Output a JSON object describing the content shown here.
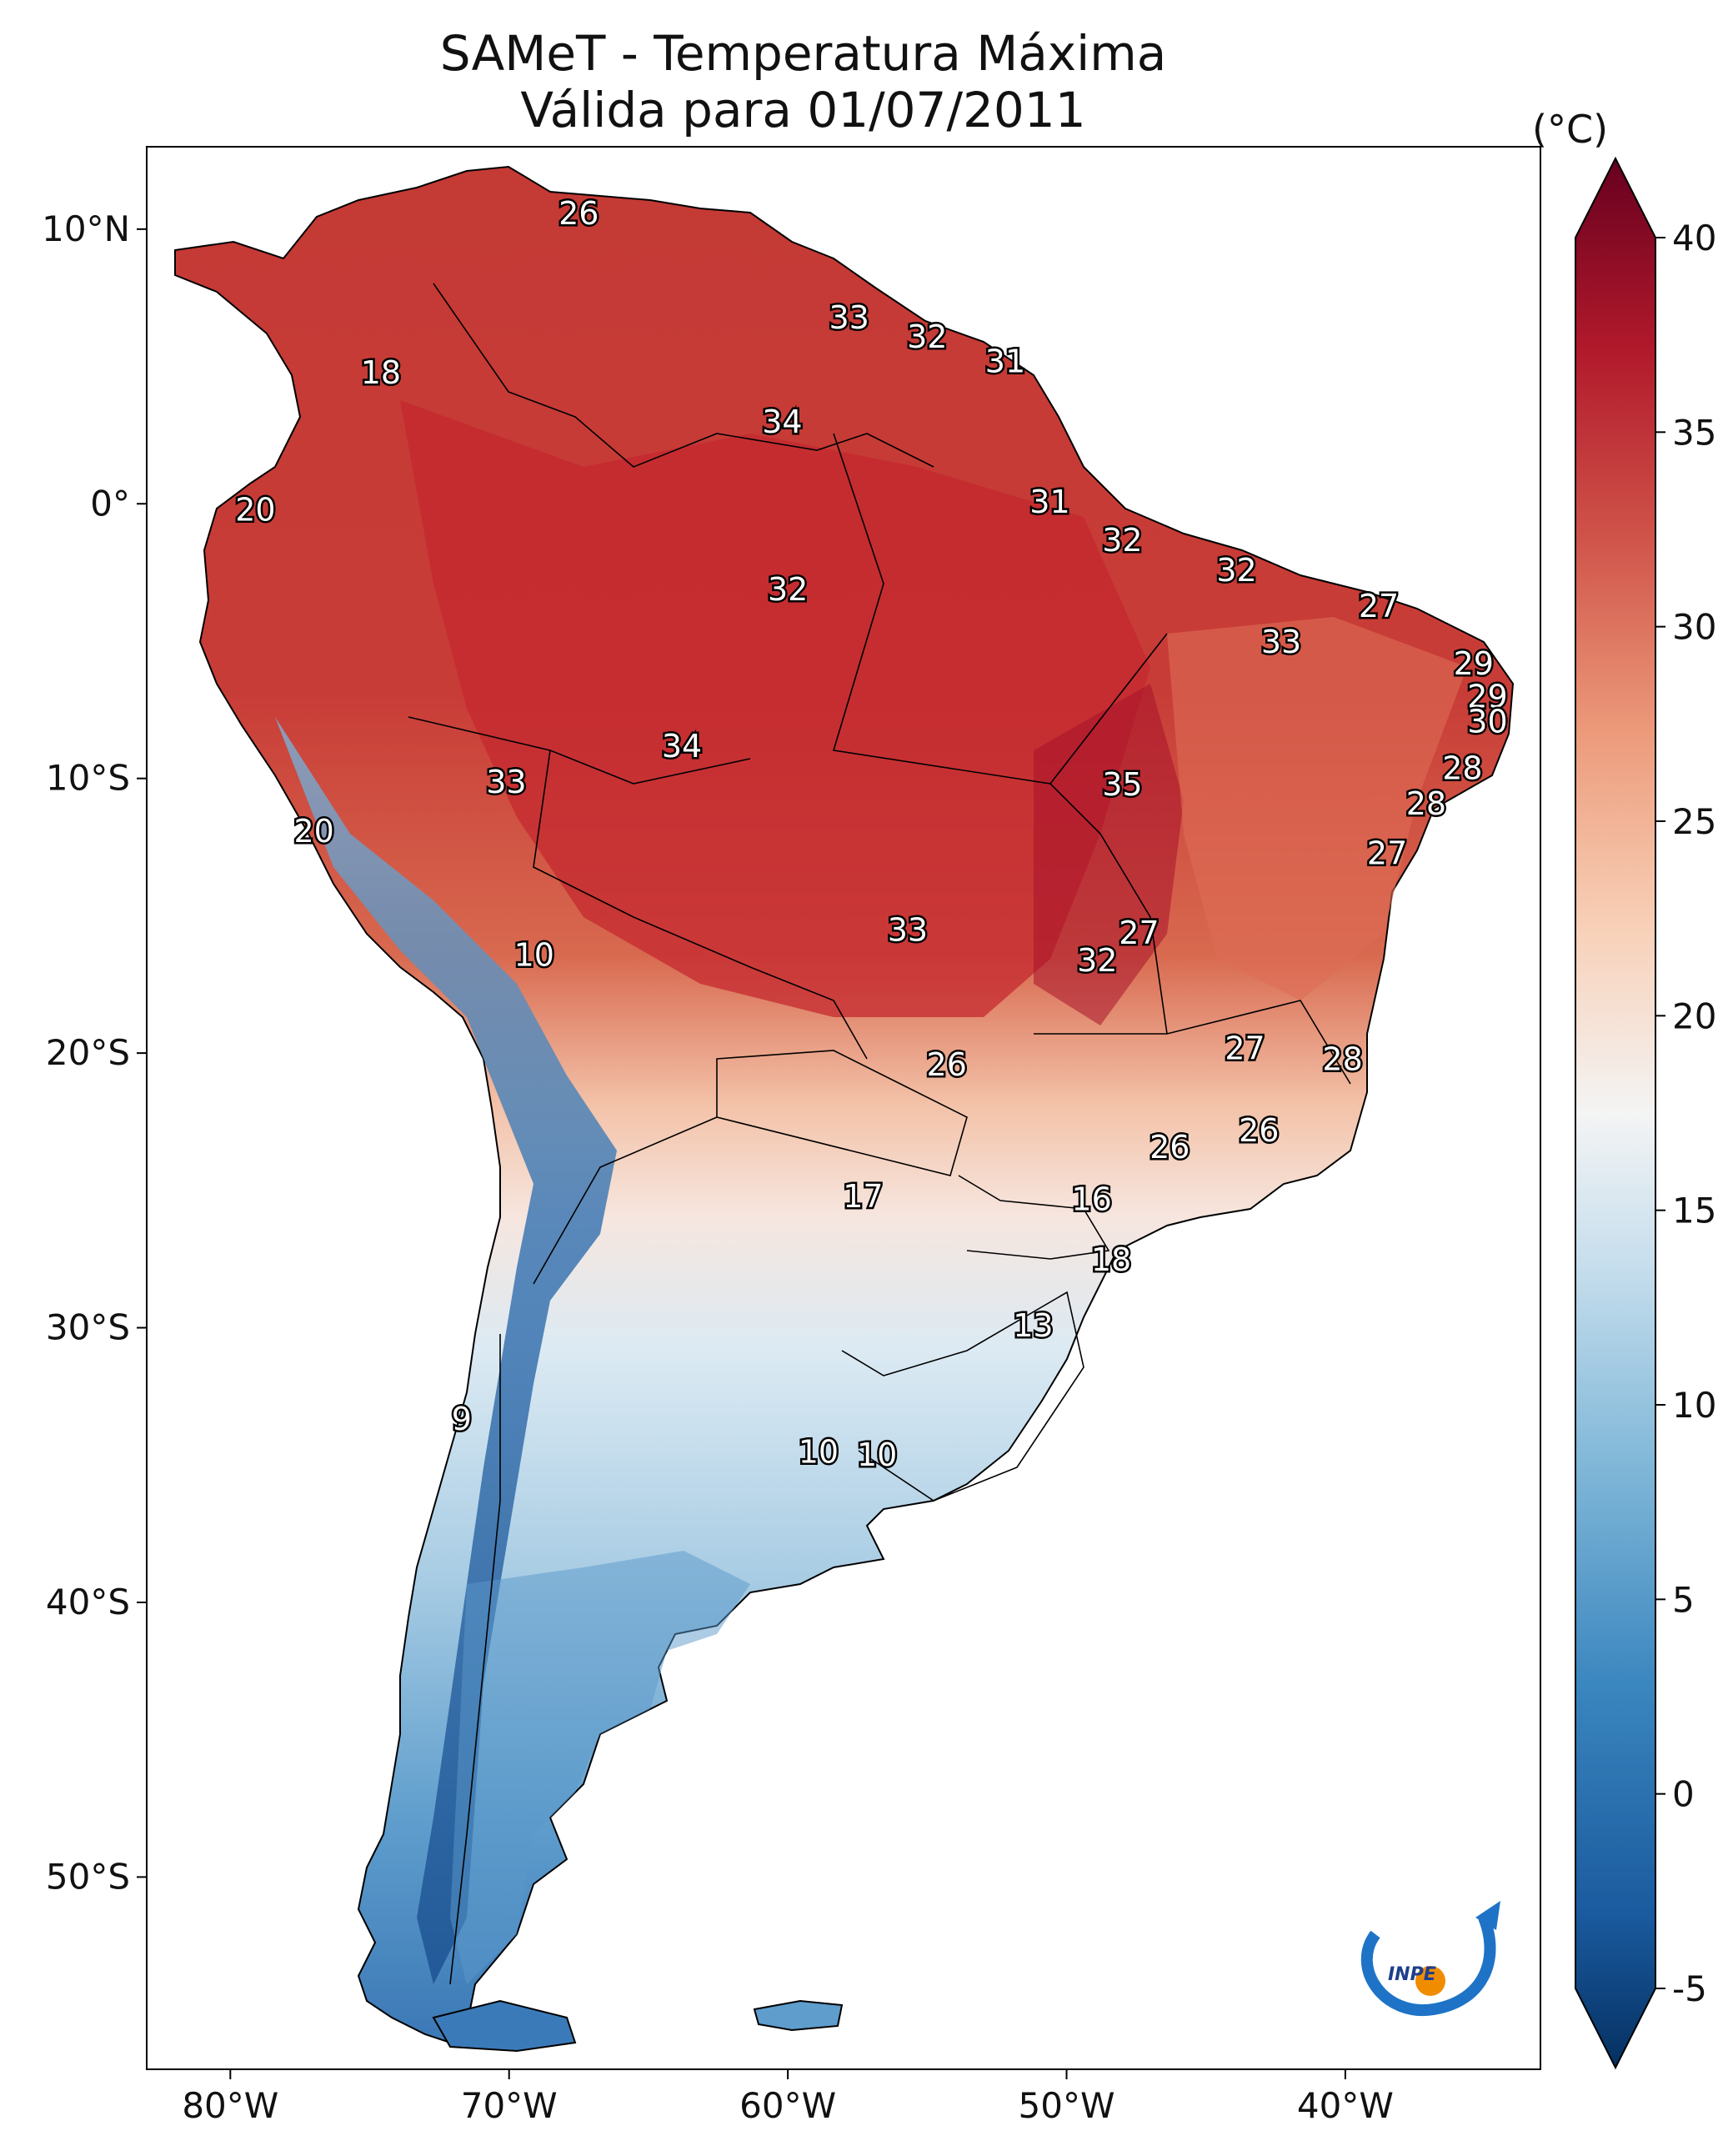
{
  "title_line1": "SAMeT - Temperatura Máxima",
  "title_line2": "Válida para 01/07/2011",
  "colorbar": {
    "unit": "(°C)",
    "ticks": [
      "40",
      "35",
      "30",
      "25",
      "20",
      "15",
      "10",
      "5",
      "0",
      "-5"
    ],
    "tick_values": [
      40,
      35,
      30,
      25,
      20,
      15,
      10,
      5,
      0,
      -5
    ],
    "min": -5,
    "max": 40,
    "colormap": "RdBu_r",
    "colors": [
      "#053061",
      "#2166ac",
      "#4393c3",
      "#92c5de",
      "#d1e5f0",
      "#f7f7f7",
      "#fddbc7",
      "#f4a582",
      "#d6604d",
      "#b2182b",
      "#67001f"
    ]
  },
  "axes": {
    "lon_labels": [
      "80°W",
      "70°W",
      "60°W",
      "50°W",
      "40°W"
    ],
    "lon_values": [
      -80,
      -70,
      -60,
      -50,
      -40
    ],
    "lat_labels": [
      "10°N",
      "0°",
      "10°S",
      "20°S",
      "30°S",
      "40°S",
      "50°S"
    ],
    "lat_values": [
      10,
      0,
      -10,
      -20,
      -30,
      -40,
      -50
    ],
    "lon_range": [
      -83,
      -33
    ],
    "lat_range": [
      -57,
      13
    ]
  },
  "station_labels": [
    {
      "text": "26",
      "lon": -67.5,
      "lat": 10.5
    },
    {
      "text": "33",
      "lon": -57.8,
      "lat": 6.7
    },
    {
      "text": "32",
      "lon": -55.0,
      "lat": 6.0
    },
    {
      "text": "31",
      "lon": -52.2,
      "lat": 5.1
    },
    {
      "text": "18",
      "lon": -74.6,
      "lat": 4.7
    },
    {
      "text": "34",
      "lon": -60.2,
      "lat": 2.9
    },
    {
      "text": "20",
      "lon": -79.1,
      "lat": -0.3
    },
    {
      "text": "31",
      "lon": -50.6,
      "lat": 0.0
    },
    {
      "text": "32",
      "lon": -48.0,
      "lat": -1.4
    },
    {
      "text": "32",
      "lon": -43.9,
      "lat": -2.5
    },
    {
      "text": "32",
      "lon": -60.0,
      "lat": -3.2
    },
    {
      "text": "27",
      "lon": -38.8,
      "lat": -3.8
    },
    {
      "text": "33",
      "lon": -42.3,
      "lat": -5.1
    },
    {
      "text": "29",
      "lon": -35.4,
      "lat": -5.9
    },
    {
      "text": "29",
      "lon": -34.9,
      "lat": -7.1
    },
    {
      "text": "30",
      "lon": -34.9,
      "lat": -8.0
    },
    {
      "text": "34",
      "lon": -63.8,
      "lat": -8.9
    },
    {
      "text": "33",
      "lon": -70.1,
      "lat": -10.2
    },
    {
      "text": "35",
      "lon": -48.0,
      "lat": -10.3
    },
    {
      "text": "28",
      "lon": -35.8,
      "lat": -9.7
    },
    {
      "text": "28",
      "lon": -37.1,
      "lat": -11.0
    },
    {
      "text": "20",
      "lon": -77.0,
      "lat": -12.0
    },
    {
      "text": "27",
      "lon": -38.5,
      "lat": -12.8
    },
    {
      "text": "33",
      "lon": -55.7,
      "lat": -15.6
    },
    {
      "text": "27",
      "lon": -47.4,
      "lat": -15.7
    },
    {
      "text": "32",
      "lon": -48.9,
      "lat": -16.7
    },
    {
      "text": "10",
      "lon": -69.1,
      "lat": -16.5
    },
    {
      "text": "27",
      "lon": -43.6,
      "lat": -19.9
    },
    {
      "text": "28",
      "lon": -40.1,
      "lat": -20.3
    },
    {
      "text": "26",
      "lon": -54.3,
      "lat": -20.5
    },
    {
      "text": "26",
      "lon": -43.1,
      "lat": -22.9
    },
    {
      "text": "26",
      "lon": -46.3,
      "lat": -23.5
    },
    {
      "text": "17",
      "lon": -57.3,
      "lat": -25.3
    },
    {
      "text": "16",
      "lon": -49.1,
      "lat": -25.4
    },
    {
      "text": "18",
      "lon": -48.4,
      "lat": -27.6
    },
    {
      "text": "13",
      "lon": -51.2,
      "lat": -30.0
    },
    {
      "text": "9",
      "lon": -71.7,
      "lat": -33.4
    },
    {
      "text": "10",
      "lon": -58.9,
      "lat": -34.6
    },
    {
      "text": "10",
      "lon": -56.8,
      "lat": -34.7
    }
  ],
  "logo": {
    "text": "INPE"
  }
}
